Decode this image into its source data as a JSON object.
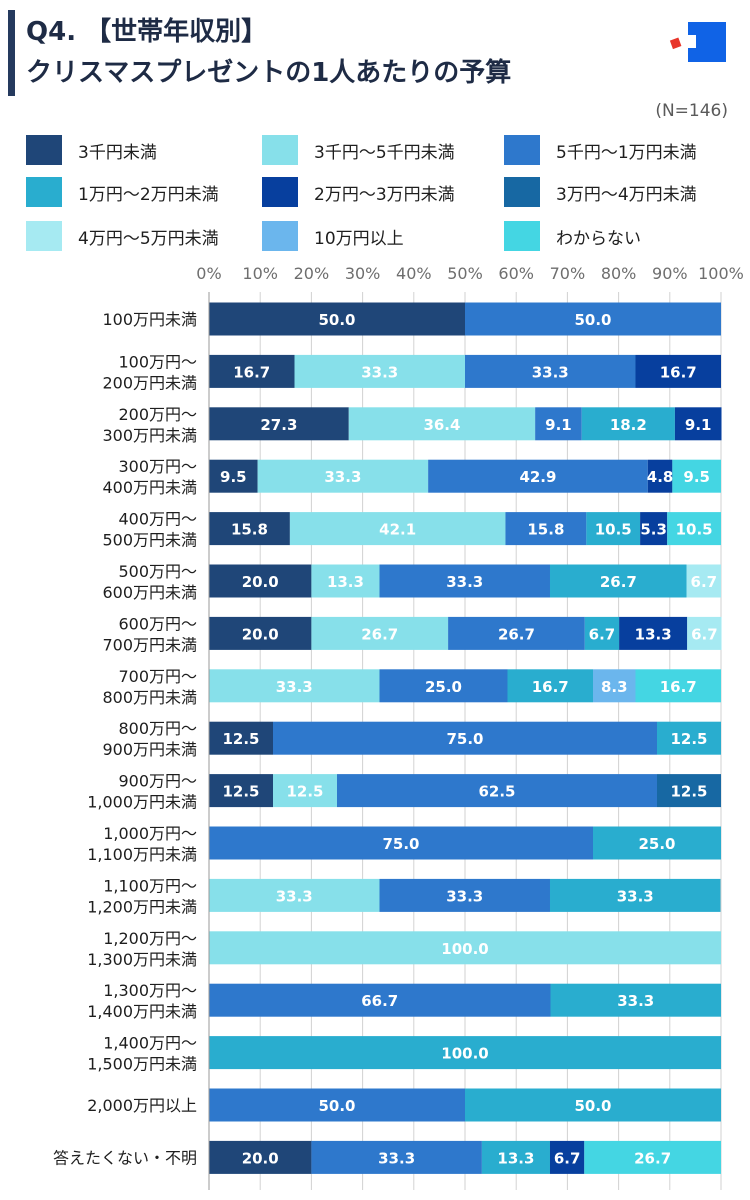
{
  "title": {
    "line1": "Q4. 【世帯年収別】",
    "line2": "クリスマスプレゼントの1人あたりの予算"
  },
  "sample_size": "(N=146)",
  "colors": {
    "s0": "#1f4678",
    "s1": "#87e0ea",
    "s2": "#2e78cc",
    "s3": "#29adcf",
    "s4": "#073f9e",
    "s5": "#1768a3",
    "s6": "#a6eaf2",
    "s7": "#6bb6ed",
    "s8": "#44d6e3",
    "logo_blue": "#1063e6",
    "logo_red": "#e8352a"
  },
  "chart_data": {
    "type": "bar",
    "orientation": "horizontal",
    "stacked": true,
    "percent_stacked": true,
    "xlim": [
      0,
      100
    ],
    "x_ticks": [
      "0%",
      "10%",
      "20%",
      "30%",
      "40%",
      "50%",
      "60%",
      "70%",
      "80%",
      "90%",
      "100%"
    ],
    "legend_position": "top",
    "categories": [
      [
        "100万円未満"
      ],
      [
        "100万円〜",
        "200万円未満"
      ],
      [
        "200万円〜",
        "300万円未満"
      ],
      [
        "300万円〜",
        "400万円未満"
      ],
      [
        "400万円〜",
        "500万円未満"
      ],
      [
        "500万円〜",
        "600万円未満"
      ],
      [
        "600万円〜",
        "700万円未満"
      ],
      [
        "700万円〜",
        "800万円未満"
      ],
      [
        "800万円〜",
        "900万円未満"
      ],
      [
        "900万円〜",
        "1,000万円未満"
      ],
      [
        "1,000万円〜",
        "1,100万円未満"
      ],
      [
        "1,100万円〜",
        "1,200万円未満"
      ],
      [
        "1,200万円〜",
        "1,300万円未満"
      ],
      [
        "1,300万円〜",
        "1,400万円未満"
      ],
      [
        "1,400万円〜",
        "1,500万円未満"
      ],
      [
        "2,000万円以上"
      ],
      [
        "答えたくない・不明"
      ]
    ],
    "series": [
      {
        "name": "3千円未満",
        "color_key": "s0",
        "values": [
          50.0,
          16.7,
          27.3,
          9.5,
          15.8,
          20.0,
          20.0,
          0,
          12.5,
          12.5,
          0,
          0,
          0,
          0,
          0,
          0,
          20.0
        ]
      },
      {
        "name": "3千円〜5千円未満",
        "color_key": "s1",
        "values": [
          0,
          33.3,
          36.4,
          33.3,
          42.1,
          13.3,
          26.7,
          33.3,
          0,
          12.5,
          0,
          33.3,
          100.0,
          0,
          0,
          0,
          0
        ]
      },
      {
        "name": "5千円〜1万円未満",
        "color_key": "s2",
        "values": [
          50.0,
          33.3,
          9.1,
          42.9,
          15.8,
          33.3,
          26.7,
          25.0,
          75.0,
          62.5,
          75.0,
          33.3,
          0,
          66.7,
          0,
          50.0,
          33.3
        ]
      },
      {
        "name": "1万円〜2万円未満",
        "color_key": "s3",
        "values": [
          0,
          0,
          18.2,
          0,
          10.5,
          26.7,
          6.7,
          16.7,
          12.5,
          0,
          25.0,
          33.3,
          0,
          33.3,
          100.0,
          50.0,
          13.3
        ]
      },
      {
        "name": "2万円〜3万円未満",
        "color_key": "s4",
        "values": [
          0,
          16.7,
          9.1,
          4.8,
          5.3,
          0,
          13.3,
          0,
          0,
          0,
          0,
          0,
          0,
          0,
          0,
          0,
          6.7
        ]
      },
      {
        "name": "3万円〜4万円未満",
        "color_key": "s5",
        "values": [
          0,
          0,
          0,
          0,
          0,
          0,
          0,
          0,
          0,
          12.5,
          0,
          0,
          0,
          0,
          0,
          0,
          0
        ]
      },
      {
        "name": "4万円〜5万円未満",
        "color_key": "s6",
        "values": [
          0,
          0,
          0,
          0,
          0,
          6.7,
          6.7,
          0,
          0,
          0,
          0,
          0,
          0,
          0,
          0,
          0,
          0
        ]
      },
      {
        "name": "10万円以上",
        "color_key": "s7",
        "values": [
          0,
          0,
          0,
          0,
          0,
          0,
          0,
          8.3,
          0,
          0,
          0,
          0,
          0,
          0,
          0,
          0,
          0
        ]
      },
      {
        "name": "わからない",
        "color_key": "s8",
        "values": [
          0,
          0,
          0,
          9.5,
          10.5,
          0,
          0,
          16.7,
          0,
          0,
          0,
          0,
          0,
          0,
          0,
          0,
          26.7
        ]
      }
    ]
  }
}
